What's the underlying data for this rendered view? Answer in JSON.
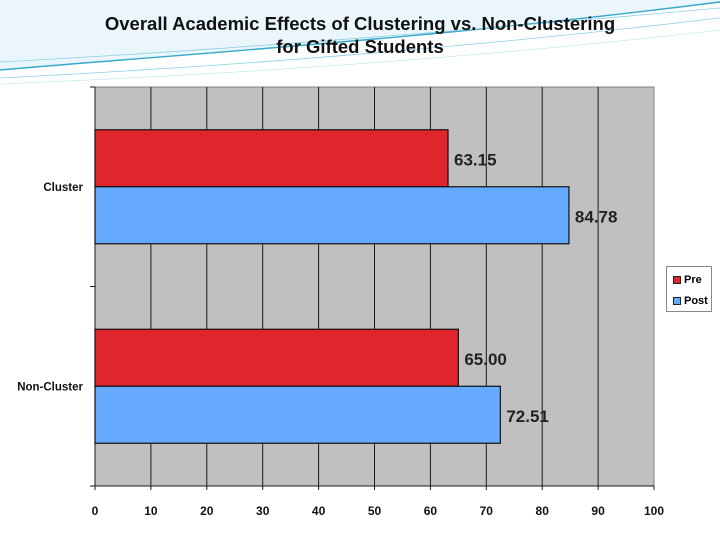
{
  "slide": {
    "title_line1": "Overall Academic Effects of Clustering vs. Non-Clustering",
    "title_line2": "for Gifted Students"
  },
  "colors": {
    "pre": "#e1252d",
    "post": "#66aaff",
    "plot_bg": "#c0c0c0",
    "accent": "#36a8c8"
  },
  "chart_data": {
    "type": "bar",
    "orientation": "horizontal",
    "title": "Overall Academic Effects of Clustering vs. Non-Clustering for Gifted Students",
    "categories": [
      "Cluster",
      "Non-Cluster"
    ],
    "series": [
      {
        "name": "Pre",
        "values": [
          63.15,
          65.0
        ],
        "labels": [
          "63.15",
          "65.00"
        ]
      },
      {
        "name": "Post",
        "values": [
          84.78,
          72.51
        ],
        "labels": [
          "84.78",
          "72.51"
        ]
      }
    ],
    "xlim": [
      0,
      100
    ],
    "xticks": [
      0,
      10,
      20,
      30,
      40,
      50,
      60,
      70,
      80,
      90,
      100
    ],
    "xlabel": "",
    "ylabel": "",
    "grid": true,
    "legend": "right"
  }
}
